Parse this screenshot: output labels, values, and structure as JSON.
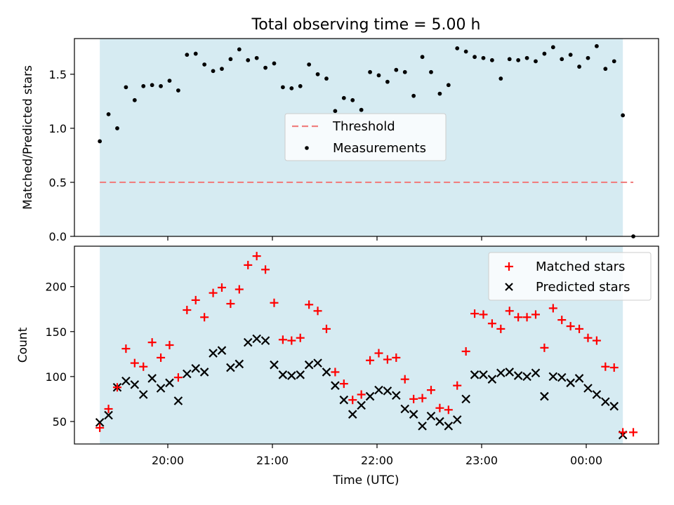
{
  "title": "Total observing time = 5.00 h",
  "chart_data": [
    {
      "type": "scatter",
      "panel": "top",
      "ylabel": "Matched/Predicted stars",
      "ylim": [
        0,
        1.83
      ],
      "yticks": [
        "0.0",
        "0.5",
        "1.0",
        "1.5"
      ],
      "grid": false,
      "legend_position": "center",
      "observing_window": [
        "19:21",
        "00:21"
      ],
      "threshold": {
        "name": "Threshold",
        "value": 0.5,
        "color": "#f08080",
        "x_start": "19:21",
        "x_end": "00:27"
      },
      "series": [
        {
          "name": "Measurements",
          "color": "#000000",
          "x": [
            "19:21",
            "19:26",
            "19:31",
            "19:36",
            "19:41",
            "19:46",
            "19:51",
            "19:56",
            "20:01",
            "20:06",
            "20:11",
            "20:16",
            "20:21",
            "20:26",
            "20:31",
            "20:36",
            "20:41",
            "20:46",
            "20:51",
            "20:56",
            "21:01",
            "21:06",
            "21:11",
            "21:16",
            "21:21",
            "21:26",
            "21:31",
            "21:36",
            "21:41",
            "21:46",
            "21:51",
            "21:56",
            "22:01",
            "22:06",
            "22:11",
            "22:16",
            "22:21",
            "22:26",
            "22:31",
            "22:36",
            "22:41",
            "22:46",
            "22:51",
            "22:56",
            "23:01",
            "23:06",
            "23:11",
            "23:16",
            "23:21",
            "23:26",
            "23:31",
            "23:36",
            "23:41",
            "23:46",
            "23:51",
            "23:56",
            "00:01",
            "00:06",
            "00:11",
            "00:16",
            "00:21",
            "00:27"
          ],
          "values": [
            0.88,
            1.13,
            1.0,
            1.38,
            1.26,
            1.39,
            1.4,
            1.39,
            1.44,
            1.35,
            1.68,
            1.69,
            1.59,
            1.53,
            1.55,
            1.64,
            1.73,
            1.63,
            1.65,
            1.56,
            1.6,
            1.38,
            1.37,
            1.39,
            1.59,
            1.5,
            1.46,
            1.16,
            1.28,
            1.26,
            1.17,
            1.52,
            1.49,
            1.43,
            1.54,
            1.52,
            1.3,
            1.66,
            1.52,
            1.32,
            1.4,
            1.74,
            1.71,
            1.66,
            1.65,
            1.63,
            1.46,
            1.64,
            1.63,
            1.65,
            1.62,
            1.69,
            1.75,
            1.64,
            1.68,
            1.57,
            1.65,
            1.76,
            1.55,
            1.62,
            1.12,
            0.0
          ]
        }
      ]
    },
    {
      "type": "scatter",
      "panel": "bottom",
      "xlabel": "Time (UTC)",
      "ylabel": "Count",
      "ylim": [
        25,
        245
      ],
      "yticks": [
        "50",
        "100",
        "150",
        "200"
      ],
      "xticks": [
        "20:00",
        "21:00",
        "22:00",
        "23:00",
        "00:00"
      ],
      "grid": false,
      "legend_position": "upper right",
      "series": [
        {
          "name": "Matched stars",
          "color": "#ff0000",
          "marker": "+",
          "x": [
            "19:21",
            "19:26",
            "19:31",
            "19:36",
            "19:41",
            "19:46",
            "19:51",
            "19:56",
            "20:01",
            "20:06",
            "20:11",
            "20:16",
            "20:21",
            "20:26",
            "20:31",
            "20:36",
            "20:41",
            "20:46",
            "20:51",
            "20:56",
            "21:01",
            "21:06",
            "21:11",
            "21:16",
            "21:21",
            "21:26",
            "21:31",
            "21:36",
            "21:41",
            "21:46",
            "21:51",
            "21:56",
            "22:01",
            "22:06",
            "22:11",
            "22:16",
            "22:21",
            "22:26",
            "22:31",
            "22:36",
            "22:41",
            "22:46",
            "22:51",
            "22:56",
            "23:01",
            "23:06",
            "23:11",
            "23:16",
            "23:21",
            "23:26",
            "23:31",
            "23:36",
            "23:41",
            "23:46",
            "23:51",
            "23:56",
            "00:01",
            "00:06",
            "00:11",
            "00:16",
            "00:21",
            "00:27"
          ],
          "values": [
            43,
            64,
            88,
            131,
            115,
            111,
            138,
            121,
            135,
            99,
            174,
            185,
            166,
            193,
            199,
            181,
            197,
            224,
            234,
            219,
            182,
            141,
            140,
            143,
            180,
            173,
            153,
            105,
            92,
            74,
            80,
            118,
            126,
            119,
            121,
            97,
            75,
            76,
            85,
            65,
            63,
            90,
            128,
            170,
            169,
            159,
            153,
            173,
            166,
            166,
            169,
            132,
            176,
            163,
            156,
            153,
            143,
            140,
            111,
            110,
            38,
            38
          ]
        },
        {
          "name": "Predicted stars",
          "color": "#000000",
          "marker": "x",
          "x": [
            "19:21",
            "19:26",
            "19:31",
            "19:36",
            "19:41",
            "19:46",
            "19:51",
            "19:56",
            "20:01",
            "20:06",
            "20:11",
            "20:16",
            "20:21",
            "20:26",
            "20:31",
            "20:36",
            "20:41",
            "20:46",
            "20:51",
            "20:56",
            "21:01",
            "21:06",
            "21:11",
            "21:16",
            "21:21",
            "21:26",
            "21:31",
            "21:36",
            "21:41",
            "21:46",
            "21:51",
            "21:56",
            "22:01",
            "22:06",
            "22:11",
            "22:16",
            "22:21",
            "22:26",
            "22:31",
            "22:36",
            "22:41",
            "22:46",
            "22:51",
            "22:56",
            "23:01",
            "23:06",
            "23:11",
            "23:16",
            "23:21",
            "23:26",
            "23:31",
            "23:36",
            "23:41",
            "23:46",
            "23:51",
            "23:56",
            "00:01",
            "00:06",
            "00:11",
            "00:16",
            "00:21"
          ],
          "values": [
            49,
            57,
            88,
            95,
            91,
            80,
            98,
            87,
            93,
            73,
            103,
            109,
            105,
            126,
            129,
            110,
            114,
            138,
            142,
            140,
            113,
            102,
            101,
            102,
            113,
            115,
            105,
            90,
            74,
            58,
            68,
            78,
            85,
            84,
            79,
            64,
            58,
            45,
            56,
            50,
            45,
            52,
            75,
            102,
            102,
            97,
            104,
            105,
            101,
            100,
            104,
            78,
            100,
            99,
            93,
            98,
            87,
            80,
            72,
            67,
            35
          ]
        }
      ]
    }
  ]
}
